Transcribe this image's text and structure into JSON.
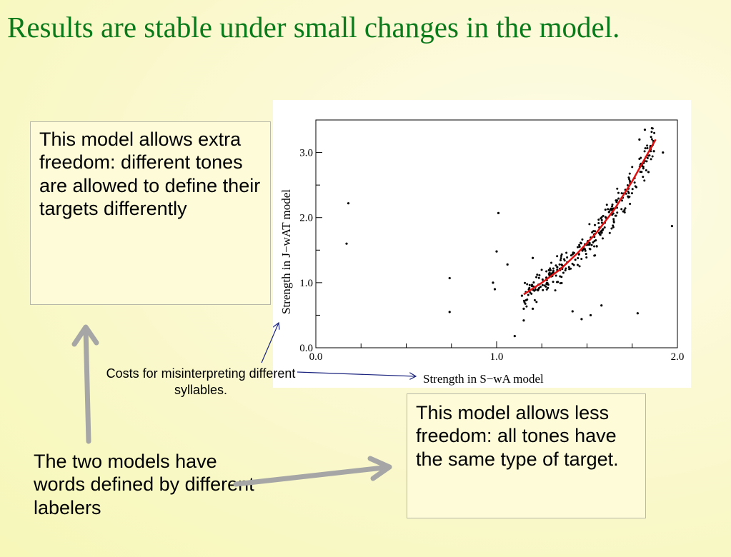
{
  "slide": {
    "title": "Results are stable under small changes in the model.",
    "note_extra": "This model allows extra freedom: different tones are allowed to define their targets differently",
    "note_less": "This model allows less freedom: all tones have the same type of target.",
    "note_labelers": "The two models have words defined by different labelers",
    "caption": "Costs for misinterpreting different syllables."
  },
  "colors": {
    "title": "#0b7a1b",
    "fit_line": "#dd1111",
    "arrow_gray": "#a6a6a6",
    "callout_arrow": "#1a237e"
  },
  "chart_data": {
    "type": "scatter",
    "title": "",
    "xlabel": "Strength in S−wA model",
    "ylabel": "Strength in J−wAT model",
    "xlim": [
      0.0,
      2.0
    ],
    "ylim": [
      0.0,
      3.5
    ],
    "xticks": [
      "0.0",
      "1.0",
      "2.0"
    ],
    "yticks": [
      "0.0",
      "1.0",
      "2.0",
      "3.0"
    ],
    "grid": false,
    "series": [
      {
        "kind": "points",
        "x": [
          0.18,
          0.17,
          1.01,
          0.74,
          0.74,
          1.0,
          0.98,
          0.99,
          1.06,
          1.1,
          1.15,
          1.2,
          1.15,
          1.14,
          1.2,
          1.42,
          1.47,
          1.52,
          1.58,
          1.78,
          1.97,
          1.82,
          1.87,
          1.92,
          1.84,
          1.79
        ],
        "y": [
          2.22,
          1.6,
          2.07,
          1.07,
          0.55,
          1.48,
          1.0,
          0.9,
          1.28,
          0.18,
          0.6,
          0.6,
          0.42,
          0.8,
          1.38,
          0.56,
          0.44,
          0.5,
          0.65,
          0.53,
          1.87,
          3.35,
          3.02,
          3.0,
          2.7,
          3.2
        ]
      },
      {
        "kind": "cloud",
        "trend": "y = 0.82*exp(1.88*(x-1.15))",
        "x_range": [
          1.15,
          1.88
        ],
        "count": 300
      },
      {
        "kind": "fit_line",
        "x": [
          1.15,
          1.25,
          1.35,
          1.45,
          1.55,
          1.65,
          1.75,
          1.88
        ],
        "y": [
          0.82,
          1.0,
          1.2,
          1.46,
          1.76,
          2.12,
          2.56,
          3.2
        ]
      }
    ]
  }
}
